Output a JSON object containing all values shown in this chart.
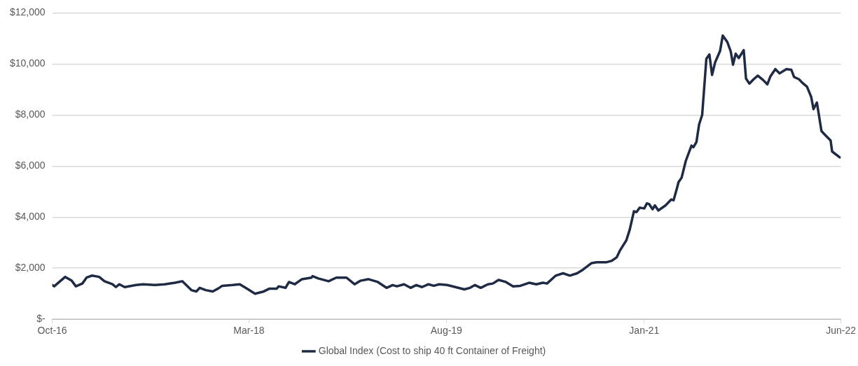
{
  "chart_data": {
    "type": "line",
    "xlim": [
      "2016-10-01",
      "2022-06-01"
    ],
    "xticks": [
      {
        "value": "2016-10-01",
        "label": "Oct-16"
      },
      {
        "value": "2018-03-01",
        "label": "Mar-18"
      },
      {
        "value": "2019-08-01",
        "label": "Aug-19"
      },
      {
        "value": "2021-01-01",
        "label": "Jan-21"
      },
      {
        "value": "2022-06-01",
        "label": "Jun-22"
      }
    ],
    "ylim": [
      0,
      12000
    ],
    "yticks": [
      {
        "value": 0,
        "label": "$-"
      },
      {
        "value": 2000,
        "label": "$2,000"
      },
      {
        "value": 4000,
        "label": "$4,000"
      },
      {
        "value": 6000,
        "label": "$6,000"
      },
      {
        "value": 8000,
        "label": "$8,000"
      },
      {
        "value": 10000,
        "label": "$10,000"
      },
      {
        "value": 12000,
        "label": "$12,000"
      }
    ],
    "grid": "y",
    "legend": "bottom",
    "marker": "none",
    "line_style": "solid",
    "series": [
      {
        "name": "Global Index (Cost to ship 40 ft Container of Freight)",
        "color": "#1f2a44",
        "x": [
          "2016-10-01",
          "2016-10-06",
          "2016-11-04",
          "2016-11-21",
          "2016-12-02",
          "2016-12-19",
          "2016-12-30",
          "2017-01-13",
          "2017-02-01",
          "2017-02-15",
          "2017-03-08",
          "2017-03-17",
          "2017-03-26",
          "2017-04-09",
          "2017-05-09",
          "2017-05-27",
          "2017-06-28",
          "2017-07-23",
          "2017-08-19",
          "2017-09-07",
          "2017-10-01",
          "2017-10-14",
          "2017-10-23",
          "2017-11-08",
          "2017-11-26",
          "2017-12-10",
          "2017-12-21",
          "2018-01-17",
          "2018-02-05",
          "2018-02-27",
          "2018-03-17",
          "2018-04-09",
          "2018-04-24",
          "2018-05-13",
          "2018-05-18",
          "2018-06-05",
          "2018-06-14",
          "2018-06-29",
          "2018-07-18",
          "2018-08-12",
          "2018-08-15",
          "2018-08-30",
          "2018-09-26",
          "2018-10-16",
          "2018-11-12",
          "2018-12-03",
          "2018-12-19",
          "2019-01-08",
          "2019-02-02",
          "2019-02-25",
          "2019-03-13",
          "2019-03-24",
          "2019-04-12",
          "2019-04-29",
          "2019-05-14",
          "2019-05-29",
          "2019-06-15",
          "2019-06-29",
          "2019-07-13",
          "2019-08-03",
          "2019-08-25",
          "2019-09-17",
          "2019-10-02",
          "2019-10-15",
          "2019-10-30",
          "2019-11-18",
          "2019-12-01",
          "2019-12-16",
          "2020-01-04",
          "2020-01-23",
          "2020-02-11",
          "2020-03-05",
          "2020-03-24",
          "2020-04-10",
          "2020-04-21",
          "2020-05-14",
          "2020-06-02",
          "2020-06-20",
          "2020-07-09",
          "2020-07-24",
          "2020-08-16",
          "2020-08-29",
          "2020-09-23",
          "2020-10-08",
          "2020-10-21",
          "2020-10-30",
          "2020-11-15",
          "2020-11-24",
          "2020-12-05",
          "2020-12-12",
          "2020-12-20",
          "2021-01-01",
          "2021-01-08",
          "2021-01-14",
          "2021-01-23",
          "2021-01-29",
          "2021-02-07",
          "2021-02-26",
          "2021-03-13",
          "2021-03-19",
          "2021-03-28",
          "2021-04-01",
          "2021-04-09",
          "2021-04-20",
          "2021-05-05",
          "2021-05-10",
          "2021-05-18",
          "2021-05-25",
          "2021-06-02",
          "2021-06-13",
          "2021-06-21",
          "2021-06-28",
          "2021-07-06",
          "2021-07-19",
          "2021-07-26",
          "2021-08-07",
          "2021-08-16",
          "2021-08-22",
          "2021-08-29",
          "2021-09-06",
          "2021-09-19",
          "2021-09-25",
          "2021-10-04",
          "2021-10-15",
          "2021-10-26",
          "2021-11-09",
          "2021-11-20",
          "2021-11-28",
          "2021-12-11",
          "2021-12-22",
          "2022-01-09",
          "2022-01-22",
          "2022-01-29",
          "2022-02-11",
          "2022-02-20",
          "2022-03-04",
          "2022-03-15",
          "2022-03-21",
          "2022-03-30",
          "2022-04-11",
          "2022-04-20",
          "2022-05-05",
          "2022-05-09",
          "2022-05-29"
        ],
        "values": [
          1340,
          1290,
          1660,
          1510,
          1290,
          1400,
          1630,
          1710,
          1660,
          1490,
          1370,
          1260,
          1370,
          1260,
          1340,
          1370,
          1340,
          1370,
          1430,
          1490,
          1140,
          1090,
          1230,
          1140,
          1090,
          1200,
          1310,
          1340,
          1370,
          1170,
          1000,
          1090,
          1200,
          1200,
          1290,
          1230,
          1460,
          1370,
          1570,
          1630,
          1690,
          1600,
          1490,
          1630,
          1630,
          1370,
          1510,
          1570,
          1460,
          1230,
          1340,
          1290,
          1370,
          1230,
          1340,
          1260,
          1370,
          1310,
          1370,
          1340,
          1260,
          1170,
          1230,
          1340,
          1230,
          1370,
          1400,
          1540,
          1460,
          1290,
          1310,
          1430,
          1370,
          1430,
          1400,
          1710,
          1800,
          1710,
          1800,
          1940,
          2200,
          2230,
          2230,
          2290,
          2430,
          2710,
          3090,
          3510,
          4230,
          4200,
          4370,
          4340,
          4540,
          4510,
          4310,
          4460,
          4260,
          4460,
          4690,
          4660,
          5140,
          5370,
          5540,
          6200,
          6800,
          6740,
          6940,
          7630,
          8000,
          10200,
          10370,
          9570,
          10060,
          10510,
          11110,
          10860,
          10490,
          9970,
          10400,
          10230,
          10540,
          9430,
          9230,
          9400,
          9540,
          9370,
          9200,
          9510,
          9800,
          9630,
          9800,
          9770,
          9490,
          9400,
          9260,
          9110,
          8710,
          8230,
          8490,
          7370,
          7230,
          7000,
          6570,
          6340
        ]
      }
    ]
  }
}
